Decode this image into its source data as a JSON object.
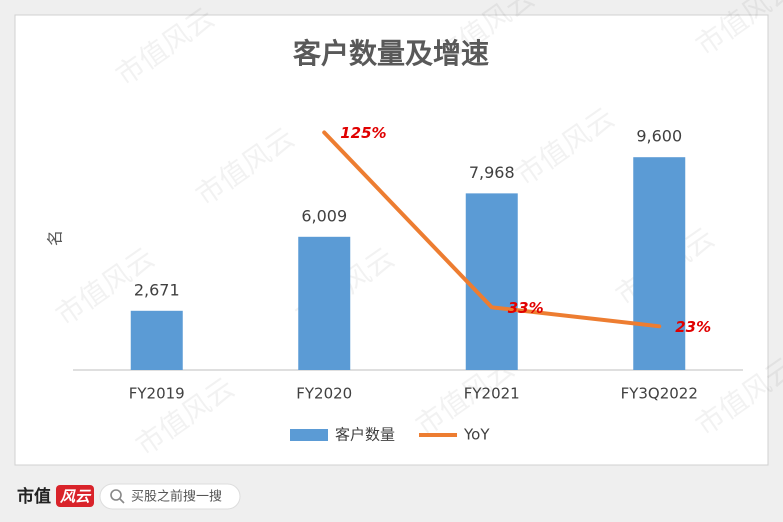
{
  "chart_data": {
    "type": "bar_line",
    "title": "客户数量及增速",
    "y_label": "名",
    "categories": [
      "FY2019",
      "FY2020",
      "FY2021",
      "FY3Q2022"
    ],
    "series": [
      {
        "name": "客户数量",
        "type": "bar",
        "color": "#5b9bd5",
        "values": [
          2671,
          6009,
          7968,
          9600
        ],
        "value_labels": [
          "2,671",
          "6,009",
          "7,968",
          "9,600"
        ]
      },
      {
        "name": "YoY",
        "type": "line",
        "axis": "y2",
        "color": "#ed7d31",
        "values": [
          null,
          125,
          33,
          23
        ],
        "value_labels": [
          null,
          "125%",
          "33%",
          "23%"
        ],
        "label_color": "#e00000"
      }
    ],
    "ylim": [
      0,
      12000
    ],
    "y2lim": [
      0,
      140
    ],
    "legend": "bottom"
  },
  "watermark": "市值风云",
  "footer": {
    "brand": "市值",
    "logo": "风云",
    "search": "买股之前搜一搜"
  }
}
